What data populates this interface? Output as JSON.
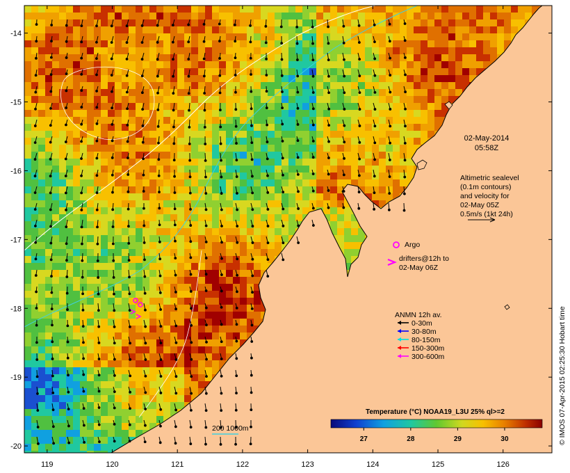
{
  "map": {
    "lon_ticks": [
      "119",
      "120",
      "121",
      "122",
      "123",
      "124",
      "125",
      "126"
    ],
    "lat_ticks": [
      "-14",
      "-15",
      "-16",
      "-17",
      "-18",
      "-19",
      "-20"
    ],
    "lon_range": [
      118.65,
      126.75
    ],
    "lat_range": [
      -20.1,
      -13.6
    ]
  },
  "info": {
    "date": "02-May-2014",
    "time": "05:58Z",
    "altimetry_lines": [
      "Altimetric sealevel",
      "(0.1m contours)",
      "and velocity for",
      "02-May 05Z",
      "0.5m/s (1kt 24h)"
    ]
  },
  "drifters": {
    "argo_label": "Argo",
    "line1": "drifters@12h to",
    "line2": "02-May 06Z",
    "argo_color": "#ff00ff",
    "drifter_color": "#ff00ff"
  },
  "anmn": {
    "title": "ANMN 12h av.",
    "items": [
      {
        "label": "0-30m",
        "color": "#000000"
      },
      {
        "label": "30-80m",
        "color": "#0000ff"
      },
      {
        "label": "80-150m",
        "color": "#00e0e0"
      },
      {
        "label": "150-300m",
        "color": "#ff0000"
      },
      {
        "label": "300-600m",
        "color": "#ff00ff"
      }
    ]
  },
  "colorbar": {
    "title": "Temperature (°C) NOAA19_L3U 25% ql>=2",
    "ticks": [
      "27",
      "28",
      "29",
      "30"
    ],
    "tick_values": [
      27,
      28,
      29,
      30
    ],
    "range": [
      26.3,
      30.8
    ]
  },
  "bathy": {
    "label": "200  1000m"
  },
  "credit": "© IMOS 07-Apr-2015 02:25:30 Hobart time",
  "colors": {
    "land": "#fbc697",
    "ocean_warm": "#c86400",
    "ocean_hot": "#a00000"
  }
}
